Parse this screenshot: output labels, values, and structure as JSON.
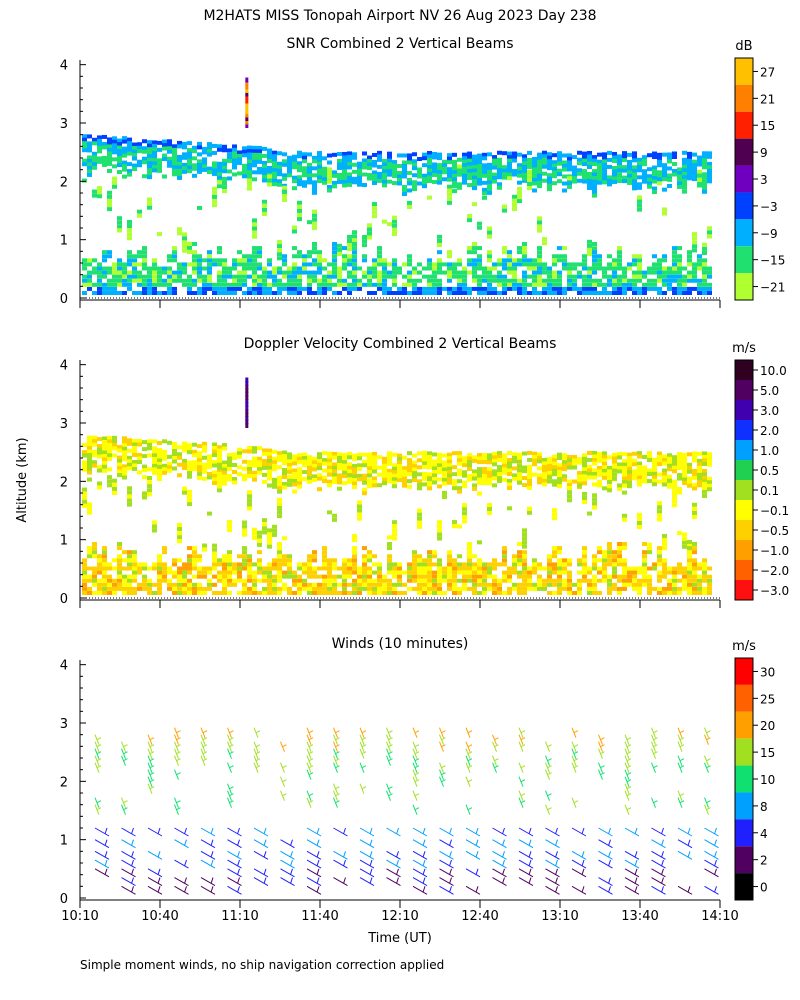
{
  "title": "M2HATS MISS Tonopah Airport NV  26 Aug 2023 Day 238",
  "ylabel": "Altitude (km)",
  "xlabel": "Time (UT)",
  "footnote": "Simple moment winds, no ship navigation correction applied",
  "time_ticks": [
    "10:10",
    "10:40",
    "11:10",
    "11:40",
    "12:10",
    "12:40",
    "13:10",
    "13:40",
    "14:10"
  ],
  "alt_ticks": [
    "0",
    "1",
    "2",
    "3",
    "4"
  ],
  "chart_data": [
    {
      "type": "heatmap",
      "title": "SNR Combined 2 Vertical Beams",
      "units": "dB",
      "xlabel": "Time (UT)",
      "ylabel": "Altitude (km)",
      "xlim": [
        "10:10",
        "14:10"
      ],
      "ylim": [
        0,
        4
      ],
      "colorbar": {
        "labels": [
          "27",
          "21",
          "15",
          "9",
          "3",
          "−3",
          "−9",
          "−15",
          "−21"
        ],
        "colors": [
          "#ffc000",
          "#ff8000",
          "#ff2000",
          "#500050",
          "#7000c0",
          "#0040ff",
          "#00b0ff",
          "#20e070",
          "#b0ff30"
        ]
      },
      "layers_km": [
        {
          "name": "upper-layer-top",
          "top_km": 2.8,
          "base_km": 2.5,
          "level_db": -3
        },
        {
          "name": "boundary-layer",
          "top_km": 1.0,
          "base_km": 0.15,
          "level_db": -15
        }
      ]
    },
    {
      "type": "heatmap",
      "title": "Doppler Velocity Combined 2 Vertical Beams",
      "units": "m/s",
      "xlabel": "Time (UT)",
      "ylabel": "Altitude (km)",
      "xlim": [
        "10:10",
        "14:10"
      ],
      "ylim": [
        0,
        4
      ],
      "colorbar": {
        "labels": [
          "10.0",
          "5.0",
          "3.0",
          "2.0",
          "1.0",
          "0.5",
          "0.1",
          "−0.1",
          "−0.5",
          "−1.0",
          "−2.0",
          "−3.0"
        ],
        "colors": [
          "#300020",
          "#500060",
          "#4000b0",
          "#1030ff",
          "#00a0ff",
          "#20d050",
          "#a0e020",
          "#ffff00",
          "#ffd000",
          "#ffa000",
          "#ff6000",
          "#ff1010"
        ]
      }
    },
    {
      "type": "scatter",
      "title": "Winds (10 minutes)",
      "units": "m/s",
      "xlabel": "Time (UT)",
      "ylabel": "Altitude (km)",
      "xlim": [
        "10:10",
        "14:10"
      ],
      "ylim": [
        0,
        4
      ],
      "colorbar": {
        "labels": [
          "30",
          "25",
          "20",
          "15",
          "10",
          "8",
          "4",
          "2",
          "0"
        ],
        "colors": [
          "#ff0000",
          "#ff6000",
          "#ffa000",
          "#a0e020",
          "#10e070",
          "#00a0ff",
          "#2020ff",
          "#500060",
          "#000000"
        ]
      }
    }
  ]
}
